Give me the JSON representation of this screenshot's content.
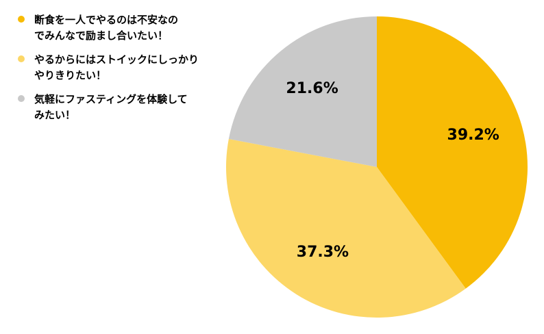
{
  "chart_data": {
    "type": "pie",
    "start": "top",
    "direction": "clockwise",
    "slices": [
      {
        "label_lines": [
          "断食を一人でやるのは不安なの",
          "でみんなで励まし合いたい！"
        ],
        "value": 39.2,
        "value_label": "39.2%",
        "color": "#F8BB05"
      },
      {
        "label_lines": [
          "やるからにはストイックにしっかり",
          "やりきりたい！"
        ],
        "value": 37.3,
        "value_label": "37.3%",
        "color": "#FCD767"
      },
      {
        "label_lines": [
          "気軽にファスティングを体験して",
          "みたい！"
        ],
        "value": 21.6,
        "value_label": "21.6%",
        "color": "#C9C9C9"
      }
    ]
  }
}
